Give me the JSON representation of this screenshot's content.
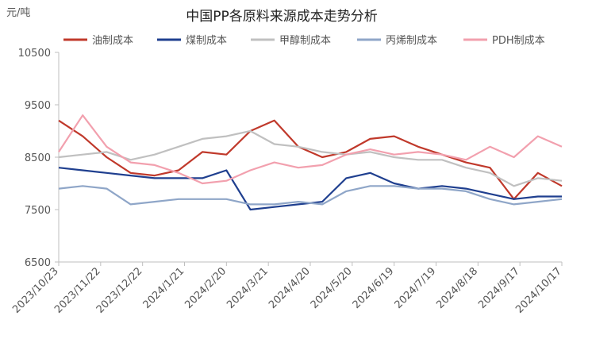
{
  "chart_data": {
    "type": "line",
    "title": "中国PP各原料来源成本走势分析",
    "unit": "元/吨",
    "ylim": [
      6500,
      10500
    ],
    "yticks": [
      6500,
      7500,
      8500,
      9500,
      10500
    ],
    "xtick_labels": [
      "2023/10/23",
      "2023/11/22",
      "2023/12/22",
      "2024/1/21",
      "2024/2/20",
      "2024/3/21",
      "2024/4/20",
      "2024/5/20",
      "2024/6/19",
      "2024/7/19",
      "2024/8/18",
      "2024/9/17",
      "2024/10/17"
    ],
    "legend_position": "top",
    "series": [
      {
        "name": "油制成本",
        "color": "#C0392B",
        "values": [
          9200,
          8900,
          8500,
          8200,
          8150,
          8250,
          8600,
          8550,
          9000,
          9200,
          8700,
          8500,
          8600,
          8850,
          8900,
          8700,
          8550,
          8400,
          8300,
          7700,
          8200,
          7950
        ]
      },
      {
        "name": "煤制成本",
        "color": "#1F3F8F",
        "values": [
          8300,
          8250,
          8200,
          8150,
          8100,
          8100,
          8100,
          8250,
          7500,
          7550,
          7600,
          7650,
          8100,
          8200,
          8000,
          7900,
          7950,
          7900,
          7800,
          7700,
          7750,
          7750
        ]
      },
      {
        "name": "甲醇制成本",
        "color": "#C0C0C0",
        "values": [
          8500,
          8550,
          8600,
          8450,
          8550,
          8700,
          8850,
          8900,
          9000,
          8750,
          8700,
          8600,
          8550,
          8600,
          8500,
          8450,
          8450,
          8300,
          8200,
          7950,
          8100,
          8050
        ]
      },
      {
        "name": "丙烯制成本",
        "color": "#8FA6C8",
        "values": [
          7900,
          7950,
          7900,
          7600,
          7650,
          7700,
          7700,
          7700,
          7600,
          7600,
          7650,
          7600,
          7850,
          7950,
          7950,
          7900,
          7900,
          7850,
          7700,
          7600,
          7650,
          7700
        ]
      },
      {
        "name": "PDH制成本",
        "color": "#F2A0AE",
        "values": [
          8600,
          9300,
          8700,
          8400,
          8350,
          8200,
          8000,
          8050,
          8250,
          8400,
          8300,
          8350,
          8550,
          8650,
          8550,
          8600,
          8550,
          8450,
          8700,
          8500,
          8900,
          8700
        ]
      }
    ]
  }
}
